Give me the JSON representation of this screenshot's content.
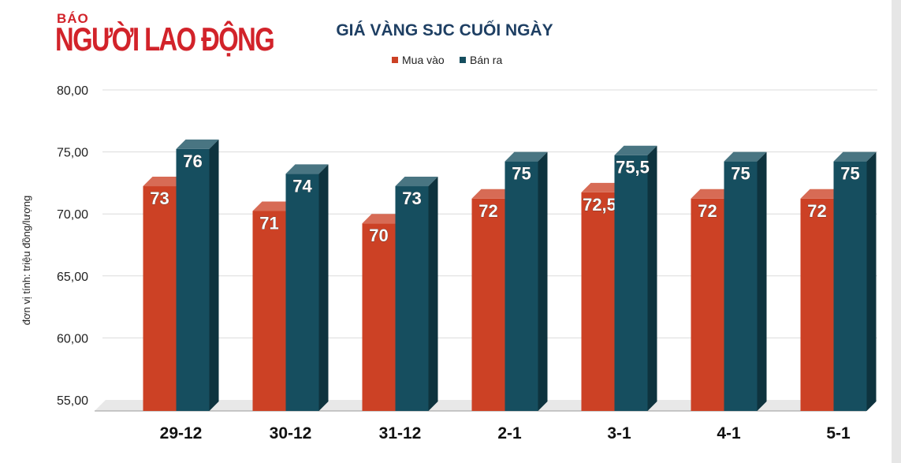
{
  "logo": {
    "top": "BÁO",
    "name": "NGƯỜI LAO ĐỘNG"
  },
  "chart_data": {
    "type": "bar",
    "title": "GIÁ VÀNG SJC CUỐI NGÀY",
    "ylabel": "đơn vị tính: triệu đồng/lượng",
    "xlabel": "",
    "categories": [
      "29-12",
      "30-12",
      "31-12",
      "2-1",
      "3-1",
      "4-1",
      "5-1"
    ],
    "series": [
      {
        "name": "Mua vào",
        "color": "#cc4125",
        "values": [
          73,
          71,
          70,
          72,
          72.5,
          72,
          72
        ],
        "labels": [
          "73",
          "71",
          "70",
          "72",
          "72,5",
          "72",
          "72"
        ]
      },
      {
        "name": "Bán ra",
        "color": "#164e5f",
        "values": [
          76,
          74,
          73,
          75,
          75.5,
          75,
          75
        ],
        "labels": [
          "76",
          "74",
          "73",
          "75",
          "75,5",
          "75",
          "75"
        ]
      }
    ],
    "ylim": [
      55,
      80
    ],
    "yticks": [
      "55,00",
      "60,00",
      "65,00",
      "70,00",
      "75,00",
      "80,00"
    ],
    "grid": true,
    "legend": "top-center"
  }
}
